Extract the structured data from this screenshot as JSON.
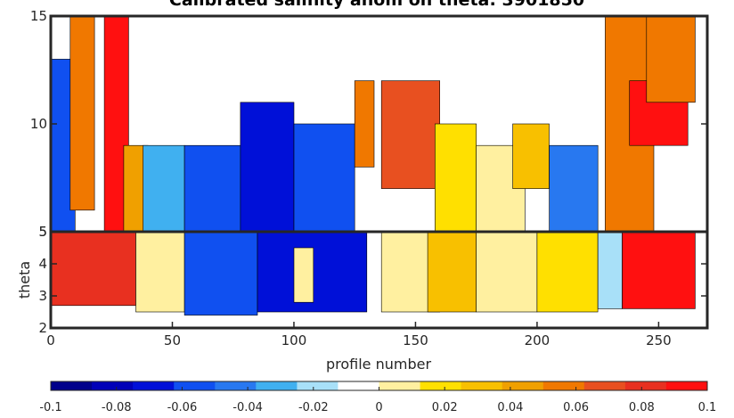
{
  "chart_data": [
    {
      "type": "heatmap",
      "panel": "upper",
      "title": "Calibrated salinity anom on theta: 3901850",
      "xlabel": "",
      "ylabel": "",
      "xlim": [
        0,
        270
      ],
      "ylim": [
        5,
        15
      ],
      "yticks": [
        5,
        10,
        15
      ],
      "ytick_labels": [
        "5",
        "10",
        "15"
      ],
      "colormap": "blue-white-red diverging",
      "regions": [
        {
          "x": [
            0,
            10
          ],
          "y": [
            5,
            13
          ],
          "value": -0.06
        },
        {
          "x": [
            8,
            18
          ],
          "y": [
            6,
            15
          ],
          "value": 0.06
        },
        {
          "x": [
            22,
            32
          ],
          "y": [
            5,
            15
          ],
          "value": 0.1
        },
        {
          "x": [
            30,
            40
          ],
          "y": [
            5,
            9
          ],
          "value": 0.04
        },
        {
          "x": [
            38,
            55
          ],
          "y": [
            5,
            9
          ],
          "value": -0.03
        },
        {
          "x": [
            55,
            80
          ],
          "y": [
            5,
            9
          ],
          "value": -0.06
        },
        {
          "x": [
            78,
            100
          ],
          "y": [
            5,
            11
          ],
          "value": -0.07
        },
        {
          "x": [
            100,
            125
          ],
          "y": [
            5,
            10
          ],
          "value": -0.06
        },
        {
          "x": [
            125,
            133
          ],
          "y": [
            8,
            12
          ],
          "value": 0.06
        },
        {
          "x": [
            136,
            160
          ],
          "y": [
            7,
            12
          ],
          "value": 0.07
        },
        {
          "x": [
            158,
            175
          ],
          "y": [
            5,
            10
          ],
          "value": 0.02
        },
        {
          "x": [
            175,
            195
          ],
          "y": [
            5,
            9
          ],
          "value": 0.0
        },
        {
          "x": [
            190,
            205
          ],
          "y": [
            7,
            10
          ],
          "value": 0.03
        },
        {
          "x": [
            205,
            225
          ],
          "y": [
            5,
            9
          ],
          "value": -0.04
        },
        {
          "x": [
            228,
            248
          ],
          "y": [
            5,
            15
          ],
          "value": 0.06
        },
        {
          "x": [
            238,
            262
          ],
          "y": [
            9,
            12
          ],
          "value": 0.1
        },
        {
          "x": [
            245,
            265
          ],
          "y": [
            11,
            15
          ],
          "value": 0.05
        }
      ]
    },
    {
      "type": "heatmap",
      "panel": "lower",
      "title": "",
      "xlabel": "profile number",
      "ylabel": "theta",
      "xlim": [
        0,
        270
      ],
      "ylim": [
        2,
        5
      ],
      "xticks": [
        0,
        50,
        100,
        150,
        200,
        250
      ],
      "xtick_labels": [
        "0",
        "50",
        "100",
        "150",
        "200",
        "250"
      ],
      "yticks": [
        2,
        3,
        4,
        5
      ],
      "ytick_labels": [
        "2",
        "3",
        "4",
        "5"
      ],
      "colormap": "blue-white-red diverging",
      "regions": [
        {
          "x": [
            0,
            35
          ],
          "y": [
            2.7,
            5
          ],
          "value": 0.08
        },
        {
          "x": [
            35,
            55
          ],
          "y": [
            2.5,
            5
          ],
          "value": 0.0
        },
        {
          "x": [
            55,
            85
          ],
          "y": [
            2.4,
            5
          ],
          "value": -0.06
        },
        {
          "x": [
            85,
            130
          ],
          "y": [
            2.5,
            5
          ],
          "value": -0.07
        },
        {
          "x": [
            100,
            108
          ],
          "y": [
            2.8,
            4.5
          ],
          "value": 0.0
        },
        {
          "x": [
            136,
            160
          ],
          "y": [
            2.5,
            5
          ],
          "value": 0.0
        },
        {
          "x": [
            155,
            175
          ],
          "y": [
            2.5,
            5
          ],
          "value": 0.03
        },
        {
          "x": [
            175,
            200
          ],
          "y": [
            2.5,
            5
          ],
          "value": 0.0
        },
        {
          "x": [
            200,
            225
          ],
          "y": [
            2.5,
            5
          ],
          "value": 0.02
        },
        {
          "x": [
            225,
            235
          ],
          "y": [
            2.6,
            5
          ],
          "value": -0.02
        },
        {
          "x": [
            235,
            265
          ],
          "y": [
            2.6,
            5
          ],
          "value": 0.1
        }
      ]
    }
  ],
  "colorbar": {
    "ticks": [
      -0.1,
      -0.08,
      -0.06,
      -0.04,
      -0.02,
      0,
      0.02,
      0.04,
      0.06,
      0.08,
      0.1
    ],
    "tick_labels": [
      "-0.1",
      "-0.08",
      "-0.06",
      "-0.04",
      "-0.02",
      "0",
      "0.02",
      "0.04",
      "0.06",
      "0.08",
      "0.1"
    ],
    "colors": [
      "#00008b",
      "#0000b8",
      "#0010d8",
      "#1050f0",
      "#2878f0",
      "#40b0f0",
      "#a8e0f8",
      "#ffffff",
      "#fff0a0",
      "#ffe000",
      "#f8c000",
      "#f0a000",
      "#f07800",
      "#e85020",
      "#e83020",
      "#ff1010"
    ]
  }
}
